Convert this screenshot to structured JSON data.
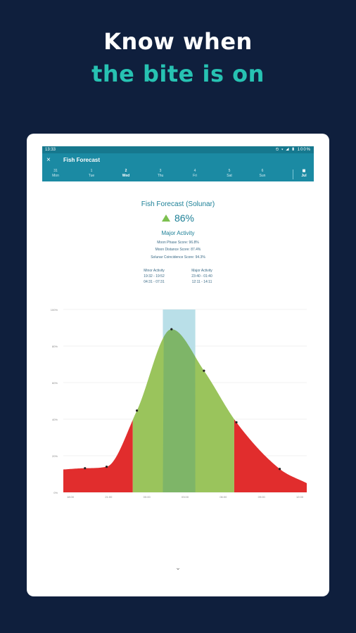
{
  "headline": {
    "line1": "Know when",
    "line2": "the bite is on"
  },
  "status_bar": {
    "time": "13:33",
    "right": "⏲ ▾ ◢ ▮ 100%"
  },
  "app_bar": {
    "close_icon": "×",
    "title": "Fish Forecast"
  },
  "day_tabs": [
    {
      "day": "31",
      "label": "Mon"
    },
    {
      "day": "1",
      "label": "Tue"
    },
    {
      "day": "2",
      "label": "Wed"
    },
    {
      "day": "3",
      "label": "Thu"
    },
    {
      "day": "4",
      "label": "Fri"
    },
    {
      "day": "5",
      "label": "Sat"
    },
    {
      "day": "6",
      "label": "Sun"
    }
  ],
  "calendar_tab": {
    "icon": "▦",
    "label": "Jul"
  },
  "forecast": {
    "title": "Fish Forecast (Solunar)",
    "score": "86%",
    "activity": "Major Activity",
    "moon_phase": "Moon Phase Score: 96.8%",
    "moon_distance": "Moon Distance Score: 87.4%",
    "solunar_coincidence": "Solunar Coincidence Score: 94.3%",
    "minor_header": "Minor Activity",
    "minor_1": "19:32 - 19:52",
    "minor_2": "04:31 - 07:31",
    "major_header": "Major Activity",
    "major_1": "23:40 - 01:40",
    "major_2": "12:11 - 14:11"
  },
  "chevron": "⌄",
  "colors": {
    "background": "#0f1f3d",
    "accent": "#27c2b2",
    "low": "#e12d2d",
    "high": "#9ac45c",
    "band": "#b9dfe8"
  },
  "chart_data": {
    "type": "area",
    "ylim": [
      0,
      100
    ],
    "y_ticks": [
      "0%",
      "20%",
      "40%",
      "60%",
      "80%",
      "100%"
    ],
    "x_ticks": [
      "18:00",
      "21:00",
      "00:00",
      "03:00",
      "06:00",
      "09:00",
      "12:00"
    ],
    "x": [
      0,
      2,
      4,
      6.8,
      10,
      13,
      16,
      20,
      22.5
    ],
    "values": [
      12.5,
      13.2,
      14,
      44.7,
      89.2,
      66.5,
      38.3,
      12.8,
      5
    ],
    "markers": [
      1,
      2,
      3,
      4,
      5,
      6,
      7
    ],
    "threshold": 40,
    "major_band": [
      9.2,
      12.2
    ],
    "xlim": [
      0,
      22.5
    ]
  }
}
